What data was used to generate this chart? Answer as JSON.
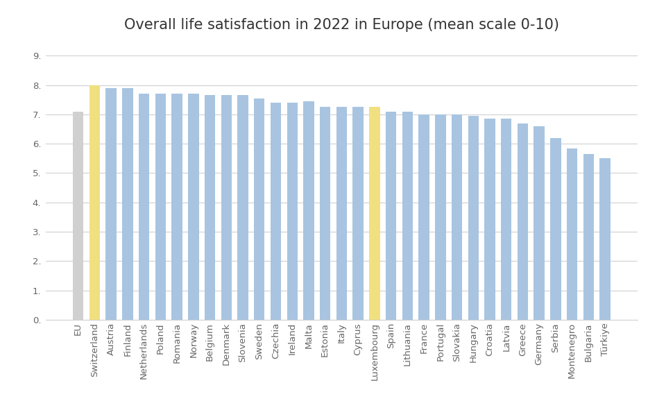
{
  "title": "Overall life satisfaction in 2022 in Europe (mean scale 0-10)",
  "categories": [
    "EU",
    "Switzerland",
    "Austria",
    "Finland",
    "Netherlands",
    "Poland",
    "Romania",
    "Norway",
    "Belgium",
    "Denmark",
    "Slovenia",
    "Sweden",
    "Czechia",
    "Ireland",
    "Malta",
    "Estonia",
    "Italy",
    "Cyprus",
    "Luxembourg",
    "Spain",
    "Lithuania",
    "France",
    "Portugal",
    "Slovakia",
    "Hungary",
    "Croatia",
    "Latvia",
    "Greece",
    "Germany",
    "Serbia",
    "Montenegro",
    "Bulgaria",
    "Türkiye"
  ],
  "values": [
    7.1,
    8.0,
    7.9,
    7.9,
    7.7,
    7.7,
    7.7,
    7.7,
    7.65,
    7.65,
    7.65,
    7.55,
    7.4,
    7.4,
    7.45,
    7.25,
    7.25,
    7.25,
    7.25,
    7.1,
    7.1,
    7.0,
    7.0,
    7.0,
    6.95,
    6.85,
    6.85,
    6.7,
    6.6,
    6.2,
    5.85,
    5.65,
    5.5
  ],
  "highlight_color": "#f0e080",
  "eu_bar_color": "#d0d0d0",
  "default_bar_color": "#a8c4e0",
  "highlight_countries": [
    "Switzerland",
    "Luxembourg"
  ],
  "ylim": [
    0,
    9.5
  ],
  "yticks": [
    0.0,
    1.0,
    2.0,
    3.0,
    4.0,
    5.0,
    6.0,
    7.0,
    8.0,
    9.0
  ],
  "ytick_labels": [
    "0.",
    "1.",
    "2.",
    "3.",
    "4.",
    "5.",
    "6.",
    "7.",
    "8.",
    "9."
  ],
  "background_color": "#ffffff",
  "grid_color": "#d0d0d0",
  "title_fontsize": 15,
  "tick_fontsize": 9.5
}
